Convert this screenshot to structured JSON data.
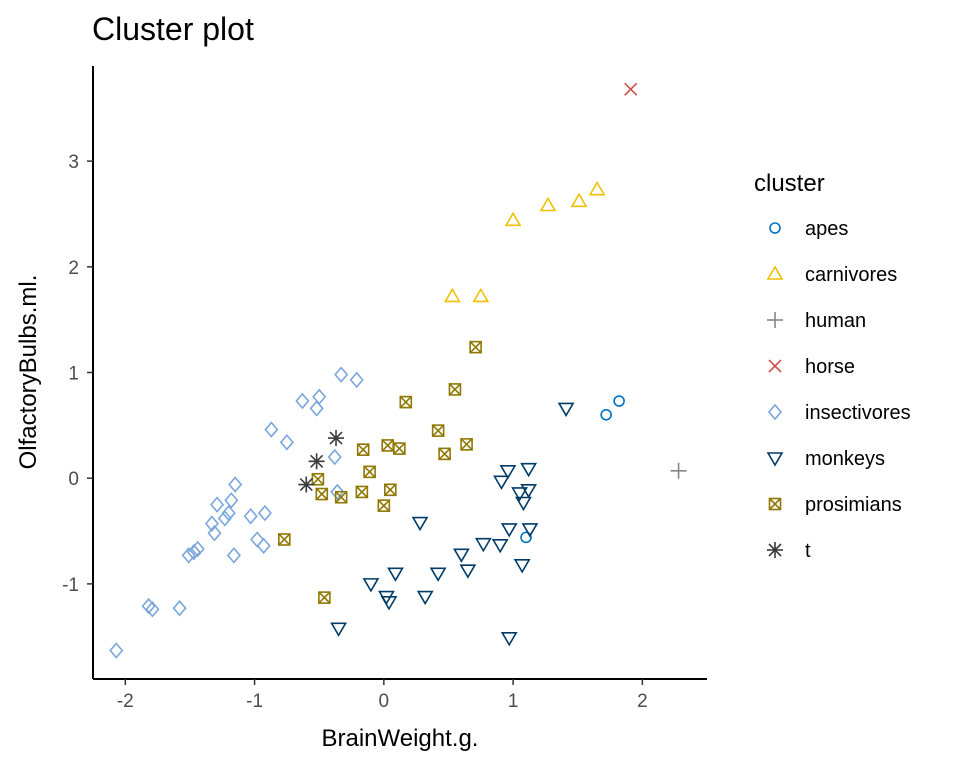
{
  "chart_data": {
    "type": "scatter",
    "title": "Cluster plot",
    "xlabel": "BrainWeight.g.",
    "ylabel": "OlfactoryBulbs.ml.",
    "xlim": [
      -2.25,
      2.5
    ],
    "ylim": [
      -1.9,
      3.9
    ],
    "xticks": [
      -2,
      -1,
      0,
      1,
      2
    ],
    "yticks": [
      -1,
      0,
      1,
      2,
      3
    ],
    "legend": {
      "title": "cluster",
      "position": "right"
    },
    "grid": false,
    "series": [
      {
        "name": "apes",
        "marker": "circle",
        "color": "#0073C2",
        "points": [
          [
            1.72,
            0.6
          ],
          [
            1.82,
            0.73
          ],
          [
            1.1,
            -0.56
          ]
        ]
      },
      {
        "name": "carnivores",
        "marker": "triangle-up",
        "color": "#EFC000",
        "points": [
          [
            0.53,
            1.72
          ],
          [
            0.75,
            1.72
          ],
          [
            1.0,
            2.44
          ],
          [
            1.27,
            2.58
          ],
          [
            1.51,
            2.62
          ],
          [
            1.65,
            2.73
          ]
        ]
      },
      {
        "name": "human",
        "marker": "plus",
        "color": "#868686",
        "points": [
          [
            2.28,
            0.07
          ]
        ]
      },
      {
        "name": "horse",
        "marker": "cross",
        "color": "#CD534C",
        "points": [
          [
            1.91,
            3.68
          ]
        ]
      },
      {
        "name": "insectivores",
        "marker": "diamond",
        "color": "#7AA6DC",
        "points": [
          [
            -2.07,
            -1.63
          ],
          [
            -1.82,
            -1.21
          ],
          [
            -1.79,
            -1.24
          ],
          [
            -1.58,
            -1.23
          ],
          [
            -1.51,
            -0.73
          ],
          [
            -1.47,
            -0.7
          ],
          [
            -1.44,
            -0.67
          ],
          [
            -1.33,
            -0.43
          ],
          [
            -1.31,
            -0.52
          ],
          [
            -1.29,
            -0.25
          ],
          [
            -1.23,
            -0.38
          ],
          [
            -1.2,
            -0.33
          ],
          [
            -1.18,
            -0.21
          ],
          [
            -1.16,
            -0.73
          ],
          [
            -1.15,
            -0.06
          ],
          [
            -1.03,
            -0.36
          ],
          [
            -0.98,
            -0.58
          ],
          [
            -0.93,
            -0.64
          ],
          [
            -0.92,
            -0.33
          ],
          [
            -0.87,
            0.46
          ],
          [
            -0.75,
            0.34
          ],
          [
            -0.63,
            0.73
          ],
          [
            -0.52,
            0.66
          ],
          [
            -0.5,
            0.77
          ],
          [
            -0.38,
            0.2
          ],
          [
            -0.36,
            -0.13
          ],
          [
            -0.33,
            0.98
          ],
          [
            -0.21,
            0.93
          ]
        ]
      },
      {
        "name": "monkeys",
        "marker": "triangle-down",
        "color": "#003C67",
        "points": [
          [
            -0.35,
            -1.42
          ],
          [
            -0.1,
            -1.0
          ],
          [
            0.02,
            -1.12
          ],
          [
            0.04,
            -1.17
          ],
          [
            0.09,
            -0.9
          ],
          [
            0.28,
            -0.42
          ],
          [
            0.32,
            -1.12
          ],
          [
            0.42,
            -0.9
          ],
          [
            0.6,
            -0.72
          ],
          [
            0.65,
            -0.87
          ],
          [
            0.77,
            -0.62
          ],
          [
            0.9,
            -0.63
          ],
          [
            0.91,
            -0.03
          ],
          [
            0.96,
            0.07
          ],
          [
            0.97,
            -0.48
          ],
          [
            0.97,
            -1.51
          ],
          [
            1.05,
            -0.14
          ],
          [
            1.07,
            -0.82
          ],
          [
            1.08,
            -0.23
          ],
          [
            1.12,
            0.09
          ],
          [
            1.12,
            -0.11
          ],
          [
            1.13,
            -0.48
          ],
          [
            1.41,
            0.66
          ]
        ]
      },
      {
        "name": "prosimians",
        "marker": "square-x",
        "color": "#8F7700",
        "points": [
          [
            -0.77,
            -0.58
          ],
          [
            -0.51,
            -0.01
          ],
          [
            -0.48,
            -0.15
          ],
          [
            -0.46,
            -1.13
          ],
          [
            -0.33,
            -0.18
          ],
          [
            -0.17,
            -0.13
          ],
          [
            -0.16,
            0.27
          ],
          [
            -0.11,
            0.06
          ],
          [
            0.0,
            -0.26
          ],
          [
            0.03,
            0.31
          ],
          [
            0.05,
            -0.11
          ],
          [
            0.12,
            0.28
          ],
          [
            0.17,
            0.72
          ],
          [
            0.42,
            0.45
          ],
          [
            0.47,
            0.23
          ],
          [
            0.55,
            0.84
          ],
          [
            0.64,
            0.32
          ],
          [
            0.71,
            1.24
          ]
        ]
      },
      {
        "name": "t",
        "marker": "asterisk",
        "color": "#3B3B3B",
        "points": [
          [
            -0.6,
            -0.06
          ],
          [
            -0.52,
            0.16
          ],
          [
            -0.37,
            0.38
          ]
        ]
      }
    ]
  }
}
